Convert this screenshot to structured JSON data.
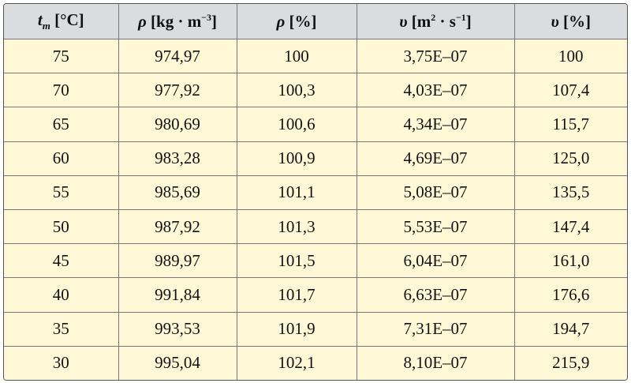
{
  "table": {
    "header": [
      [
        {
          "text": "t",
          "style": "italic"
        },
        {
          "text": "m",
          "style": "sub"
        },
        {
          "text": " [°C]",
          "style": "plain"
        }
      ],
      [
        {
          "text": "ρ",
          "style": "italic"
        },
        {
          "text": " [kg · m",
          "style": "plain"
        },
        {
          "text": "−3",
          "style": "sup"
        },
        {
          "text": "]",
          "style": "plain"
        }
      ],
      [
        {
          "text": "ρ",
          "style": "italic"
        },
        {
          "text": " [%]",
          "style": "plain"
        }
      ],
      [
        {
          "text": "υ",
          "style": "italic"
        },
        {
          "text": " [m",
          "style": "plain"
        },
        {
          "text": "2",
          "style": "sup"
        },
        {
          "text": " · s",
          "style": "plain"
        },
        {
          "text": "−1",
          "style": "sup"
        },
        {
          "text": "]",
          "style": "plain"
        }
      ],
      [
        {
          "text": "υ",
          "style": "italic"
        },
        {
          "text": " [%]",
          "style": "plain"
        }
      ]
    ],
    "rows": [
      [
        "75",
        "974,97",
        "100",
        "3,75E–07",
        "100"
      ],
      [
        "70",
        "977,92",
        "100,3",
        "4,03E–07",
        "107,4"
      ],
      [
        "65",
        "980,69",
        "100,6",
        "4,34E–07",
        "115,7"
      ],
      [
        "60",
        "983,28",
        "100,9",
        "4,69E–07",
        "125,0"
      ],
      [
        "55",
        "985,69",
        "101,1",
        "5,08E–07",
        "135,5"
      ],
      [
        "50",
        "987,92",
        "101,3",
        "5,53E–07",
        "147,4"
      ],
      [
        "45",
        "989,97",
        "101,5",
        "6,04E–07",
        "161,0"
      ],
      [
        "40",
        "991,84",
        "101,7",
        "6,63E–07",
        "176,6"
      ],
      [
        "35",
        "993,53",
        "101,9",
        "7,31E–07",
        "194,7"
      ],
      [
        "30",
        "995,04",
        "102,1",
        "8,10E–07",
        "215,9"
      ]
    ]
  }
}
